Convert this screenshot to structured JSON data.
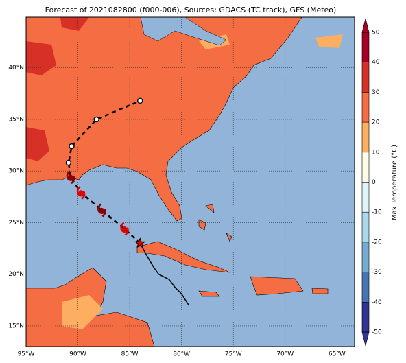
{
  "chart_data": {
    "type": "map",
    "title": "Forecast of 2021082800 (f000-006), Sources: GDACS (TC track), GFS (Meteo)",
    "xlim": [
      -95,
      -63.3
    ],
    "ylim": [
      13,
      44.9
    ],
    "xticks": [
      {
        "value": -95,
        "label": "95°W"
      },
      {
        "value": -90,
        "label": "90°W"
      },
      {
        "value": -85,
        "label": "85°W"
      },
      {
        "value": -80,
        "label": "80°W"
      },
      {
        "value": -75,
        "label": "75°W"
      },
      {
        "value": -70,
        "label": "70°W"
      },
      {
        "value": -65,
        "label": "65°W"
      }
    ],
    "yticks": [
      {
        "value": 15,
        "label": "15°N"
      },
      {
        "value": 20,
        "label": "20°N"
      },
      {
        "value": 25,
        "label": "25°N"
      },
      {
        "value": 30,
        "label": "30°N"
      },
      {
        "value": 35,
        "label": "35°N"
      },
      {
        "value": 40,
        "label": "40°N"
      }
    ],
    "grid": true,
    "colorbar": {
      "label": "Max Temperature (°C)",
      "lim": [
        -50,
        50
      ],
      "ticks": [
        -50,
        -40,
        -30,
        -20,
        -10,
        0,
        10,
        20,
        30,
        40,
        50
      ],
      "colors": [
        "#313695",
        "#4575b4",
        "#74add1",
        "#abd9e9",
        "#e0f3f8",
        "#fefee6",
        "#fdae61",
        "#f46d43",
        "#d73027",
        "#a50026"
      ]
    },
    "past_track": {
      "lon": [
        -79.3,
        -80.0,
        -80.6,
        -81.2,
        -82.2,
        -82.7,
        -83.4,
        -84.0
      ],
      "lat": [
        17.0,
        18.1,
        18.7,
        19.5,
        20.0,
        20.7,
        21.9,
        23.0
      ]
    },
    "forecast_track": {
      "lon": [
        -84.0,
        -85.5,
        -87.7,
        -89.7,
        -90.7
      ],
      "lat": [
        23.0,
        24.4,
        26.2,
        27.9,
        29.4
      ]
    },
    "extended_track": {
      "lon": [
        -90.9,
        -90.6,
        -88.2,
        -84.0
      ],
      "lat": [
        30.8,
        32.4,
        35.0,
        36.8
      ]
    }
  }
}
